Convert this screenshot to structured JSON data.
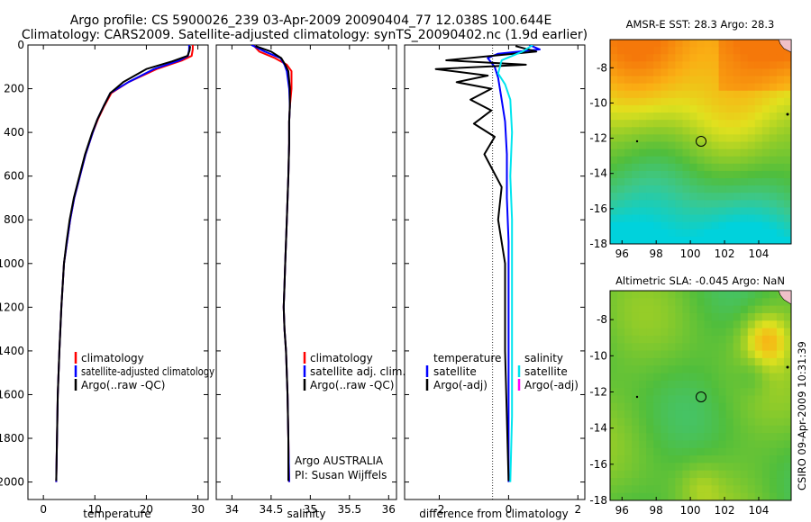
{
  "figure": {
    "title_line1": "Argo profile: CS 5900026_239 03-Apr-2009 20090404_77 12.038S 100.644E",
    "title_line2": "Climatology: CARS2009. Satellite-adjusted climatology: synTS_20090402.nc (1.9d earlier)",
    "side_stamp": "CSIRO 09-Apr-2009 10:31:39"
  },
  "chart_data": [
    {
      "type": "line",
      "panel": "temperature",
      "xlabel": "temperature",
      "xticks": [
        0,
        10,
        20,
        30
      ],
      "xlim": [
        -3,
        32
      ],
      "yticks": [
        0,
        200,
        400,
        600,
        800,
        1000,
        1200,
        1400,
        1600,
        1800,
        2000
      ],
      "ylim": [
        0,
        2080
      ],
      "y_reversed": true,
      "legend": [
        "climatology",
        "satellite-adjusted climatology",
        "Argo(..raw -QC)"
      ],
      "series": [
        {
          "name": "climatology",
          "color": "#ff0000",
          "x": [
            29.0,
            29.0,
            28.8,
            27.0,
            22.0,
            16.5,
            13.2,
            11.8,
            10.6,
            9.6,
            8.2,
            7.1,
            6.0,
            5.2,
            4.6,
            4.0,
            3.5,
            3.1,
            2.8,
            2.5
          ],
          "y": [
            0,
            20,
            50,
            70,
            110,
            170,
            220,
            280,
            340,
            400,
            500,
            600,
            700,
            800,
            900,
            1000,
            1200,
            1400,
            1600,
            2000
          ]
        },
        {
          "name": "satellite-adjusted climatology",
          "color": "#0000ff",
          "x": [
            28.3,
            28.3,
            28.1,
            26.5,
            21.5,
            16.5,
            13.0,
            11.7,
            10.5,
            9.6,
            8.2,
            7.1,
            6.0,
            5.2,
            4.6,
            4.0,
            3.5,
            3.1,
            2.8,
            2.5
          ],
          "y": [
            0,
            20,
            50,
            70,
            110,
            170,
            220,
            280,
            340,
            400,
            500,
            600,
            700,
            800,
            900,
            1000,
            1200,
            1400,
            1600,
            2000
          ]
        },
        {
          "name": "Argo(..raw -QC)",
          "color": "#000000",
          "x": [
            28.5,
            28.4,
            28.0,
            25.0,
            20.0,
            15.5,
            13.0,
            11.7,
            10.5,
            9.5,
            8.1,
            7.0,
            5.9,
            5.1,
            4.5,
            4.0,
            3.5,
            3.1,
            2.8,
            2.5
          ],
          "y": [
            5,
            25,
            50,
            75,
            110,
            170,
            220,
            280,
            340,
            400,
            500,
            600,
            700,
            800,
            900,
            1000,
            1200,
            1400,
            1600,
            1995
          ]
        }
      ]
    },
    {
      "type": "line",
      "panel": "salinity",
      "xlabel": "salinity",
      "xticks": [
        34,
        34.5,
        35,
        35.5,
        36
      ],
      "xlim": [
        33.8,
        36.1
      ],
      "ylim": [
        0,
        2080
      ],
      "y_reversed": true,
      "legend": [
        "climatology",
        "satellite adj. clim.",
        "Argo(..raw -QC)"
      ],
      "annotations": [
        "Argo AUSTRALIA",
        "PI: Susan Wijffels"
      ],
      "series": [
        {
          "name": "climatology",
          "color": "#ff0000",
          "x": [
            34.27,
            34.35,
            34.55,
            34.7,
            34.76,
            34.76,
            34.74,
            34.73,
            34.73,
            34.72,
            34.7,
            34.68,
            34.67,
            34.66,
            34.67,
            34.69,
            34.71,
            34.72,
            34.73
          ],
          "y": [
            0,
            30,
            60,
            90,
            120,
            200,
            280,
            350,
            450,
            600,
            800,
            1000,
            1100,
            1200,
            1300,
            1400,
            1600,
            1800,
            2000
          ]
        },
        {
          "name": "satellite adj. clim.",
          "color": "#0000ff",
          "x": [
            34.25,
            34.42,
            34.62,
            34.67,
            34.7,
            34.73,
            34.74,
            34.73,
            34.73,
            34.72,
            34.7,
            34.68,
            34.67,
            34.66,
            34.67,
            34.69,
            34.71,
            34.72,
            34.73
          ],
          "y": [
            0,
            30,
            60,
            90,
            120,
            200,
            280,
            350,
            450,
            600,
            800,
            1000,
            1100,
            1200,
            1300,
            1400,
            1600,
            1800,
            2000
          ]
        },
        {
          "name": "Argo(..raw -QC)",
          "color": "#000000",
          "x": [
            34.3,
            34.5,
            34.63,
            34.68,
            34.72,
            34.74,
            34.74,
            34.73,
            34.73,
            34.72,
            34.7,
            34.68,
            34.67,
            34.66,
            34.67,
            34.69,
            34.71,
            34.72,
            34.72
          ],
          "y": [
            5,
            30,
            60,
            90,
            120,
            200,
            280,
            350,
            450,
            600,
            800,
            1000,
            1100,
            1200,
            1300,
            1400,
            1600,
            1800,
            1995
          ]
        }
      ]
    },
    {
      "type": "line",
      "panel": "difference",
      "xlabel": "difference from climatology",
      "xticks": [
        -2,
        0,
        2
      ],
      "xlim": [
        -3,
        2.2
      ],
      "ylim": [
        0,
        2080
      ],
      "y_reversed": true,
      "legend_groups": [
        {
          "heading": "temperature",
          "items": [
            "satellite",
            "Argo(-adj)"
          ]
        },
        {
          "heading": "salinity",
          "items": [
            "satellite",
            "Argo(-adj)"
          ]
        }
      ],
      "series": [
        {
          "name": "temperature satellite",
          "color": "#0000ff",
          "x": [
            0.6,
            0.9,
            -0.3,
            -0.6,
            -0.4,
            -0.3,
            -0.2,
            -0.1,
            -0.05,
            -0.05,
            0,
            0,
            0,
            0,
            0,
            0
          ],
          "y": [
            0,
            20,
            40,
            60,
            100,
            150,
            250,
            350,
            500,
            700,
            900,
            1100,
            1300,
            1500,
            1800,
            2000
          ]
        },
        {
          "name": "temperature Argo(-adj)",
          "color": "#000000",
          "x": [
            0.2,
            0.8,
            -1.8,
            0.5,
            -2.1,
            -0.6,
            -1.5,
            -0.5,
            -1.1,
            -0.5,
            -1.0,
            -0.4,
            -0.7,
            -0.2,
            -0.3,
            -0.1,
            -0.1,
            0
          ],
          "y": [
            5,
            30,
            70,
            90,
            110,
            140,
            170,
            200,
            250,
            300,
            360,
            420,
            500,
            650,
            800,
            1000,
            1400,
            1995
          ]
        },
        {
          "name": "salinity satellite",
          "color": "#00e5ee",
          "x": [
            0.7,
            0.4,
            -0.2,
            -0.3,
            -0.1,
            0.05,
            0.1,
            0.05,
            0.1,
            0.1,
            0.1,
            0.1,
            0.05
          ],
          "y": [
            0,
            30,
            70,
            130,
            180,
            250,
            400,
            600,
            800,
            1000,
            1400,
            1700,
            2000
          ]
        },
        {
          "name": "salinity Argo(-adj)",
          "color": "#ff00ff",
          "x": [],
          "y": []
        }
      ]
    },
    {
      "type": "heatmap",
      "panel": "map-sst",
      "title": "AMSR-E SST: 28.3 Argo: 28.3",
      "xticks": [
        96,
        98,
        100,
        102,
        104
      ],
      "yticks": [
        -8,
        -10,
        -12,
        -14,
        -16,
        -18
      ],
      "xlim": [
        95.3,
        105.9
      ],
      "ylim": [
        -18,
        -6.4
      ],
      "marker": {
        "lon": 100.644,
        "lat": -12.038
      }
    },
    {
      "type": "heatmap",
      "panel": "map-sla",
      "title": "Altimetric SLA: -0.045 Argo: NaN",
      "xticks": [
        96,
        98,
        100,
        102,
        104
      ],
      "yticks": [
        -8,
        -10,
        -12,
        -14,
        -16,
        -18
      ],
      "xlim": [
        95.3,
        105.9
      ],
      "ylim": [
        -18,
        -6.4
      ],
      "marker": {
        "lon": 100.644,
        "lat": -12.038
      }
    }
  ]
}
